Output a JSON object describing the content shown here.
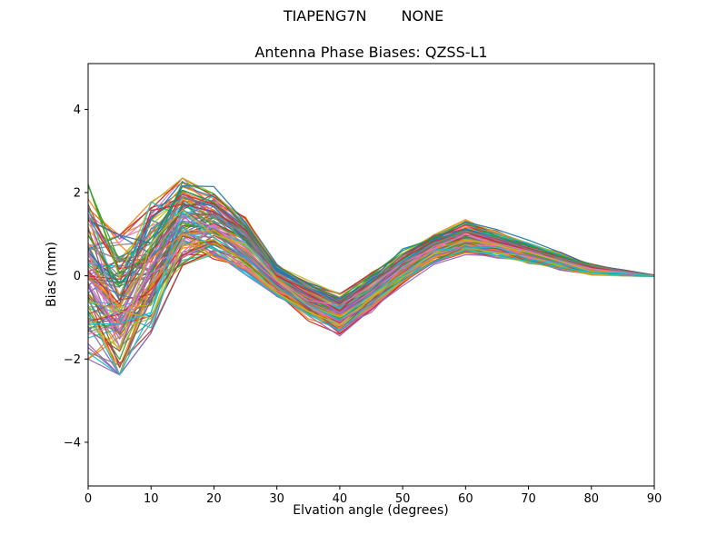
{
  "chart_data": {
    "type": "line",
    "suptitle_left": "TIAPENG7N",
    "suptitle_right": "NONE",
    "title": "Antenna Phase Biases: QZSS-L1",
    "xlabel": "Elvation angle (degrees)",
    "ylabel": "Bias (mm)",
    "xlim": [
      0,
      90
    ],
    "ylim": [
      -5.05,
      5.1
    ],
    "xticks": [
      0,
      10,
      20,
      30,
      40,
      50,
      60,
      70,
      80,
      90
    ],
    "yticks": [
      -4,
      -2,
      0,
      2,
      4
    ],
    "yticklabels": [
      "−4",
      "−2",
      "0",
      "2",
      "4"
    ],
    "grid": false,
    "legend": "none",
    "n_lines": 110,
    "seed": 1316,
    "x": [
      0,
      5,
      10,
      15,
      20,
      25,
      30,
      35,
      40,
      45,
      50,
      55,
      60,
      65,
      70,
      75,
      80,
      85,
      90
    ],
    "mean": [
      0.1,
      -0.7,
      0.2,
      1.3,
      1.2,
      0.7,
      -0.1,
      -0.6,
      -0.9,
      -0.4,
      0.2,
      0.65,
      0.9,
      0.75,
      0.55,
      0.35,
      0.15,
      0.07,
      0.0
    ],
    "spread": [
      2.0,
      1.6,
      1.5,
      1.0,
      0.9,
      0.8,
      0.45,
      0.5,
      0.55,
      0.5,
      0.45,
      0.4,
      0.45,
      0.35,
      0.3,
      0.22,
      0.15,
      0.08,
      0.02
    ],
    "palette": [
      "#1f77b4",
      "#ff7f0e",
      "#2ca02c",
      "#d62728",
      "#9467bd",
      "#8c564b",
      "#e377c2",
      "#7f7f7f",
      "#bcbd22",
      "#17becf"
    ]
  }
}
